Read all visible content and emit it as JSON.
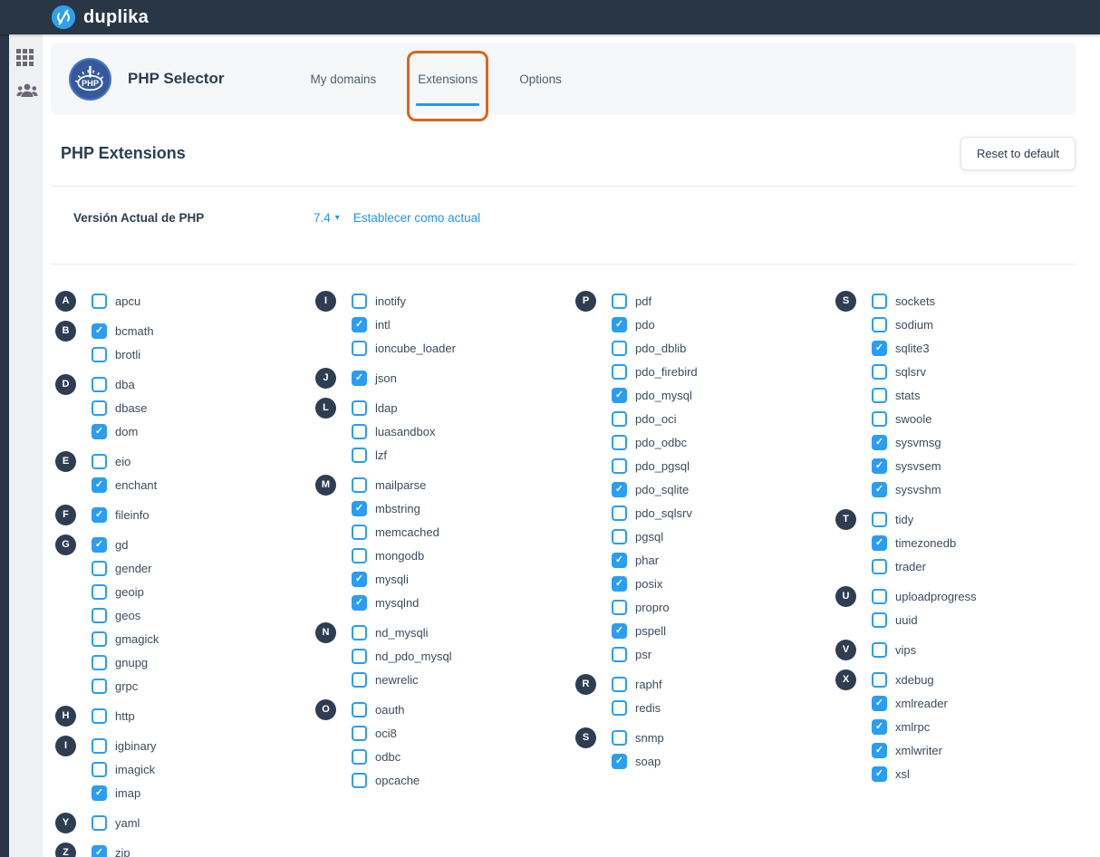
{
  "topbar": {
    "brand": "duplika"
  },
  "sidebar": {
    "icons": [
      "apps-grid-icon",
      "users-group-icon"
    ]
  },
  "header": {
    "title": "PHP Selector",
    "tabs": [
      {
        "label": "My domains",
        "active": false,
        "highlighted": false
      },
      {
        "label": "Extensions",
        "active": true,
        "highlighted": true
      },
      {
        "label": "Options",
        "active": false,
        "highlighted": false
      }
    ]
  },
  "content": {
    "section_title": "PHP Extensions",
    "reset_button": "Reset to default",
    "current_version_label": "Versión Actual de PHP",
    "current_version": "7.4",
    "caret": "▾",
    "set_current_link": "Establecer como actual"
  },
  "colors": {
    "topbar_bg": "#293645",
    "brand_blue": "#2f9ff0",
    "accent_blue": "#2196f3",
    "active_tab_underline": "#2797f0",
    "checkbox_blue": "#2a9df4",
    "letter_badge_bg": "#2e3d52",
    "orange_annotation": "#d9651c",
    "header_card_bg": "#f6f7f9",
    "heading_text": "#2c3e50"
  },
  "extensions": {
    "columns": [
      [
        {
          "letter": "A",
          "items": [
            {
              "label": "apcu",
              "checked": false
            }
          ]
        },
        {
          "letter": "B",
          "items": [
            {
              "label": "bcmath",
              "checked": true
            },
            {
              "label": "brotli",
              "checked": false
            }
          ]
        },
        {
          "letter": "D",
          "items": [
            {
              "label": "dba",
              "checked": false
            },
            {
              "label": "dbase",
              "checked": false
            },
            {
              "label": "dom",
              "checked": true
            }
          ]
        },
        {
          "letter": "E",
          "items": [
            {
              "label": "eio",
              "checked": false
            },
            {
              "label": "enchant",
              "checked": true
            }
          ]
        },
        {
          "letter": "F",
          "items": [
            {
              "label": "fileinfo",
              "checked": true
            }
          ]
        },
        {
          "letter": "G",
          "items": [
            {
              "label": "gd",
              "checked": true
            },
            {
              "label": "gender",
              "checked": false
            },
            {
              "label": "geoip",
              "checked": false
            },
            {
              "label": "geos",
              "checked": false
            },
            {
              "label": "gmagick",
              "checked": false
            },
            {
              "label": "gnupg",
              "checked": false
            },
            {
              "label": "grpc",
              "checked": false
            }
          ]
        },
        {
          "letter": "H",
          "items": [
            {
              "label": "http",
              "checked": false
            }
          ]
        },
        {
          "letter": "I",
          "items": [
            {
              "label": "igbinary",
              "checked": false
            },
            {
              "label": "imagick",
              "checked": false
            },
            {
              "label": "imap",
              "checked": true
            }
          ]
        },
        {
          "letter": "Y",
          "items": [
            {
              "label": "yaml",
              "checked": false
            }
          ]
        },
        {
          "letter": "Z",
          "items": [
            {
              "label": "zip",
              "checked": true
            }
          ]
        }
      ],
      [
        {
          "letter": "I",
          "items": [
            {
              "label": "inotify",
              "checked": false
            },
            {
              "label": "intl",
              "checked": true
            },
            {
              "label": "ioncube_loader",
              "checked": false
            }
          ]
        },
        {
          "letter": "J",
          "items": [
            {
              "label": "json",
              "checked": true
            }
          ]
        },
        {
          "letter": "L",
          "items": [
            {
              "label": "ldap",
              "checked": false
            },
            {
              "label": "luasandbox",
              "checked": false
            },
            {
              "label": "lzf",
              "checked": false
            }
          ]
        },
        {
          "letter": "M",
          "items": [
            {
              "label": "mailparse",
              "checked": false
            },
            {
              "label": "mbstring",
              "checked": true
            },
            {
              "label": "memcached",
              "checked": false
            },
            {
              "label": "mongodb",
              "checked": false
            },
            {
              "label": "mysqli",
              "checked": true
            },
            {
              "label": "mysqlnd",
              "checked": true
            }
          ]
        },
        {
          "letter": "N",
          "items": [
            {
              "label": "nd_mysqli",
              "checked": false
            },
            {
              "label": "nd_pdo_mysql",
              "checked": false
            },
            {
              "label": "newrelic",
              "checked": false
            }
          ]
        },
        {
          "letter": "O",
          "items": [
            {
              "label": "oauth",
              "checked": false
            },
            {
              "label": "oci8",
              "checked": false
            },
            {
              "label": "odbc",
              "checked": false
            },
            {
              "label": "opcache",
              "checked": false
            }
          ]
        }
      ],
      [
        {
          "letter": "P",
          "items": [
            {
              "label": "pdf",
              "checked": false
            },
            {
              "label": "pdo",
              "checked": true
            },
            {
              "label": "pdo_dblib",
              "checked": false
            },
            {
              "label": "pdo_firebird",
              "checked": false
            },
            {
              "label": "pdo_mysql",
              "checked": true
            },
            {
              "label": "pdo_oci",
              "checked": false
            },
            {
              "label": "pdo_odbc",
              "checked": false
            },
            {
              "label": "pdo_pgsql",
              "checked": false
            },
            {
              "label": "pdo_sqlite",
              "checked": true
            },
            {
              "label": "pdo_sqlsrv",
              "checked": false
            },
            {
              "label": "pgsql",
              "checked": false
            },
            {
              "label": "phar",
              "checked": true
            },
            {
              "label": "posix",
              "checked": true
            },
            {
              "label": "propro",
              "checked": false
            },
            {
              "label": "pspell",
              "checked": true
            },
            {
              "label": "psr",
              "checked": false
            }
          ]
        },
        {
          "letter": "R",
          "items": [
            {
              "label": "raphf",
              "checked": false
            },
            {
              "label": "redis",
              "checked": false
            }
          ]
        },
        {
          "letter": "S",
          "items": [
            {
              "label": "snmp",
              "checked": false
            },
            {
              "label": "soap",
              "checked": true
            }
          ]
        }
      ],
      [
        {
          "letter": "S",
          "items": [
            {
              "label": "sockets",
              "checked": false
            },
            {
              "label": "sodium",
              "checked": false
            },
            {
              "label": "sqlite3",
              "checked": true
            },
            {
              "label": "sqlsrv",
              "checked": false
            },
            {
              "label": "stats",
              "checked": false
            },
            {
              "label": "swoole",
              "checked": false
            },
            {
              "label": "sysvmsg",
              "checked": true
            },
            {
              "label": "sysvsem",
              "checked": true
            },
            {
              "label": "sysvshm",
              "checked": true
            }
          ]
        },
        {
          "letter": "T",
          "items": [
            {
              "label": "tidy",
              "checked": false
            },
            {
              "label": "timezonedb",
              "checked": true
            },
            {
              "label": "trader",
              "checked": false
            }
          ]
        },
        {
          "letter": "U",
          "items": [
            {
              "label": "uploadprogress",
              "checked": false
            },
            {
              "label": "uuid",
              "checked": false
            }
          ]
        },
        {
          "letter": "V",
          "items": [
            {
              "label": "vips",
              "checked": false
            }
          ]
        },
        {
          "letter": "X",
          "items": [
            {
              "label": "xdebug",
              "checked": false
            },
            {
              "label": "xmlreader",
              "checked": true
            },
            {
              "label": "xmlrpc",
              "checked": true
            },
            {
              "label": "xmlwriter",
              "checked": true
            },
            {
              "label": "xsl",
              "checked": true
            }
          ]
        }
      ]
    ]
  }
}
